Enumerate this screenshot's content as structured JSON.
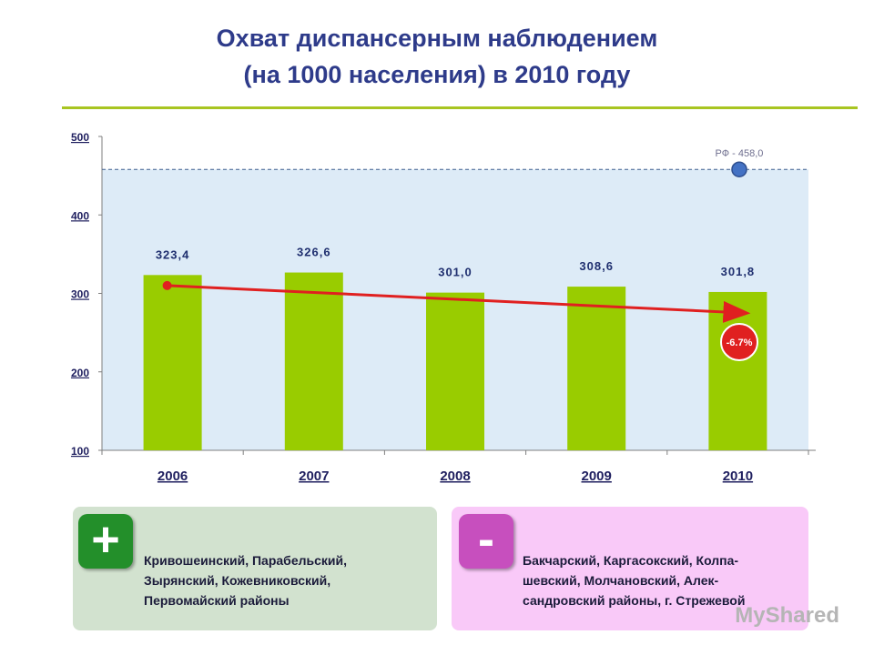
{
  "title": {
    "line1": "Охват диспансерным наблюдением",
    "line2": "(на 1000 населения) в 2010 году"
  },
  "chart_data": {
    "type": "bar",
    "categories": [
      "2006",
      "2007",
      "2008",
      "2009",
      "2010"
    ],
    "values": [
      323.4,
      326.6,
      301.0,
      308.6,
      301.8
    ],
    "value_labels": [
      "323,4",
      "326,6",
      "301,0",
      "308,6",
      "301,8"
    ],
    "ylim": [
      100,
      500
    ],
    "yticks": [
      "100",
      "200",
      "300",
      "400",
      "500"
    ],
    "reference": {
      "label": "РФ - 458,0",
      "value": 458.0
    },
    "trend": {
      "from_value": 310,
      "to_value": 275,
      "label": "-6.7%"
    },
    "bar_color": "#99cc00",
    "plot_bg": "#ddebf7",
    "trend_color": "#e02020",
    "reference_color": "#4472c4"
  },
  "panels": {
    "plus": {
      "sign": "+",
      "text_lines": [
        "Кривошеинский, Парабельский,",
        "Зырянский, Кожевниковский,",
        "Первомайский районы"
      ]
    },
    "minus": {
      "sign": "-",
      "text_lines": [
        "Бакчарский, Каргасокский, Колпа-",
        "шевский, Молчановский, Алек-",
        "сандровский районы, г. Стрежевой"
      ]
    }
  },
  "watermark": "MyShared"
}
